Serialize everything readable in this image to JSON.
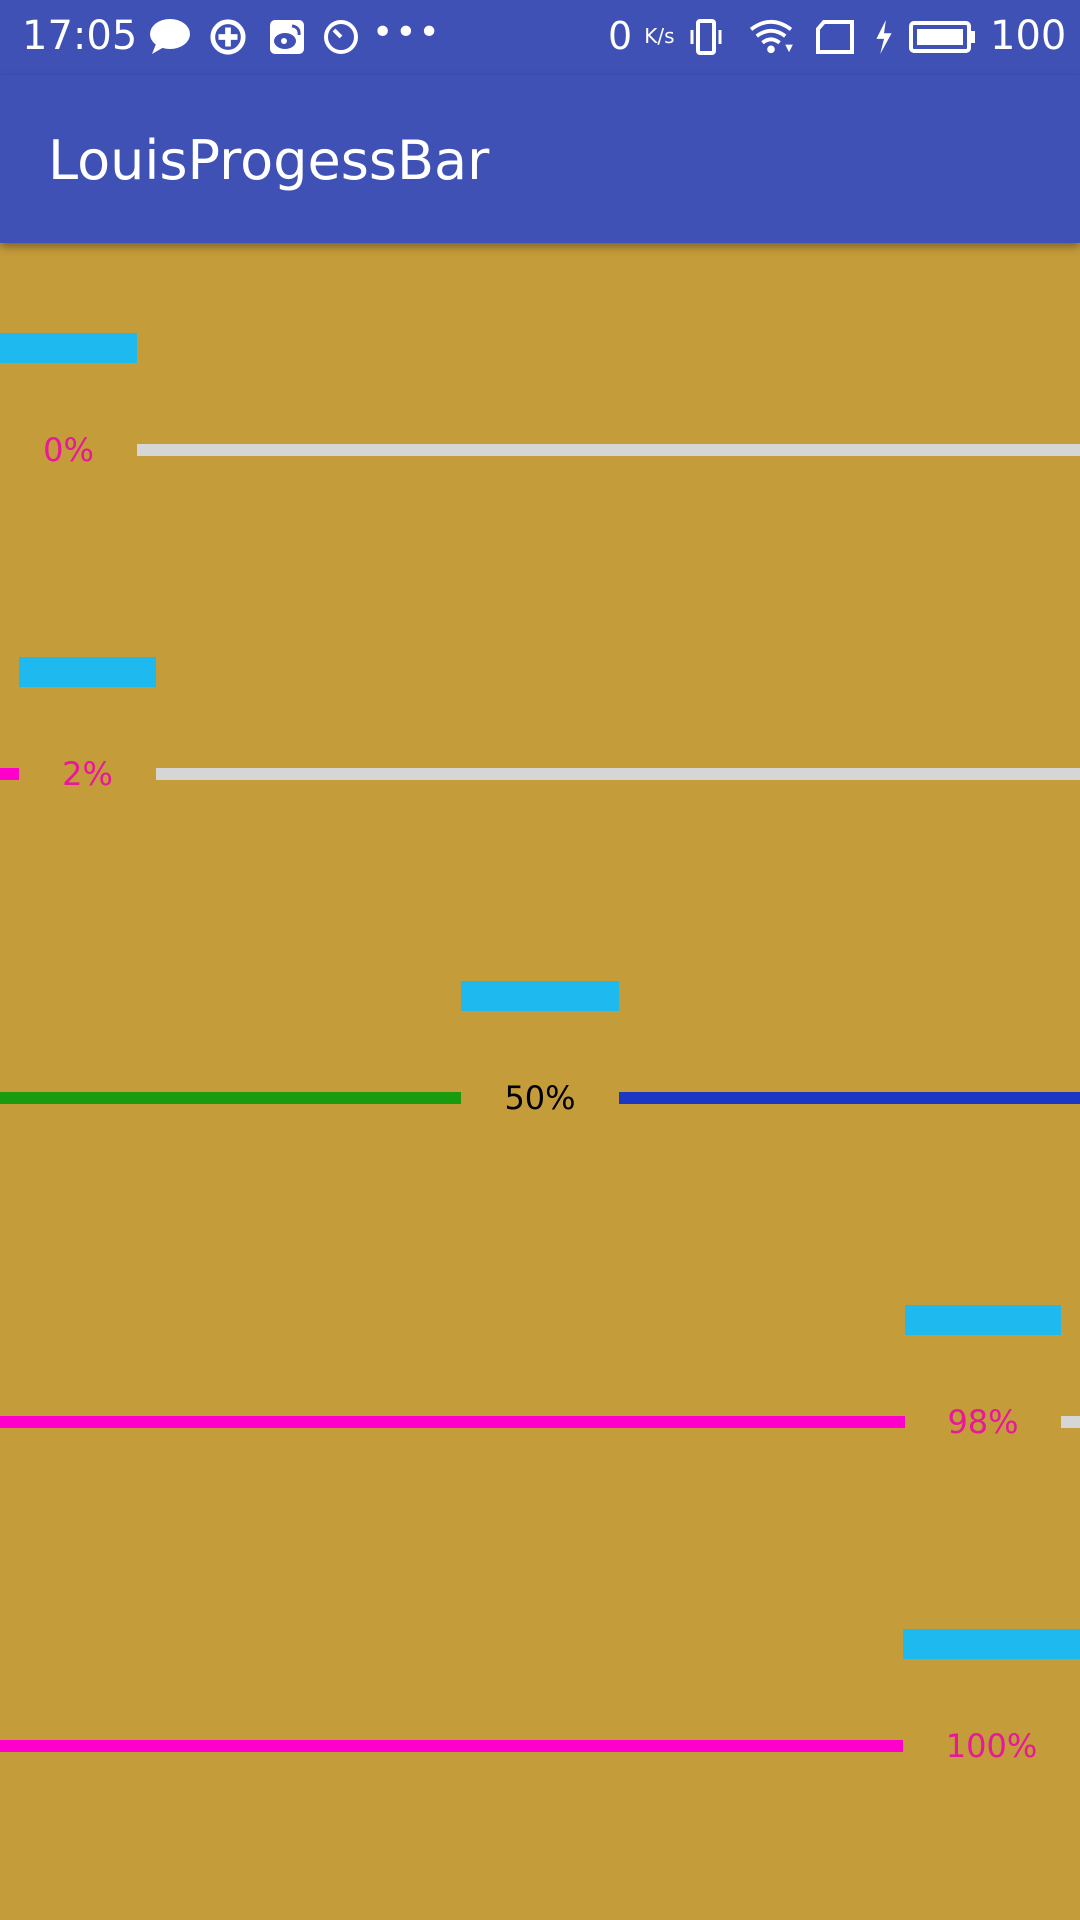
{
  "status_bar": {
    "time": "17:05",
    "net_speed_value": "0",
    "net_speed_unit": "K/s",
    "battery_text": "100",
    "icons": [
      "chat-bubble-icon",
      "sync-icon",
      "weibo-icon",
      "timer-icon",
      "more-dots-icon",
      "vibrate-icon",
      "wifi-icon",
      "sim-icon",
      "charging-icon",
      "battery-icon"
    ]
  },
  "app_bar": {
    "title": "LouisProgessBar"
  },
  "colors": {
    "primary": "#3f51b5",
    "background": "#c49c3a",
    "tag": "#1eb9ee",
    "progress_pink": "#ff00cc",
    "track_gray": "#d6d6d6",
    "progress_green": "#1a9a0e",
    "track_blue": "#1d37c2",
    "label_pink": "#e8189a",
    "label_black": "#000000"
  },
  "progress_bars": [
    {
      "label": "0%",
      "progress": 0
    },
    {
      "label": "2%",
      "progress": 2
    },
    {
      "label": "50%",
      "progress": 50
    },
    {
      "label": "98%",
      "progress": 98
    },
    {
      "label": "100%",
      "progress": 100
    }
  ]
}
